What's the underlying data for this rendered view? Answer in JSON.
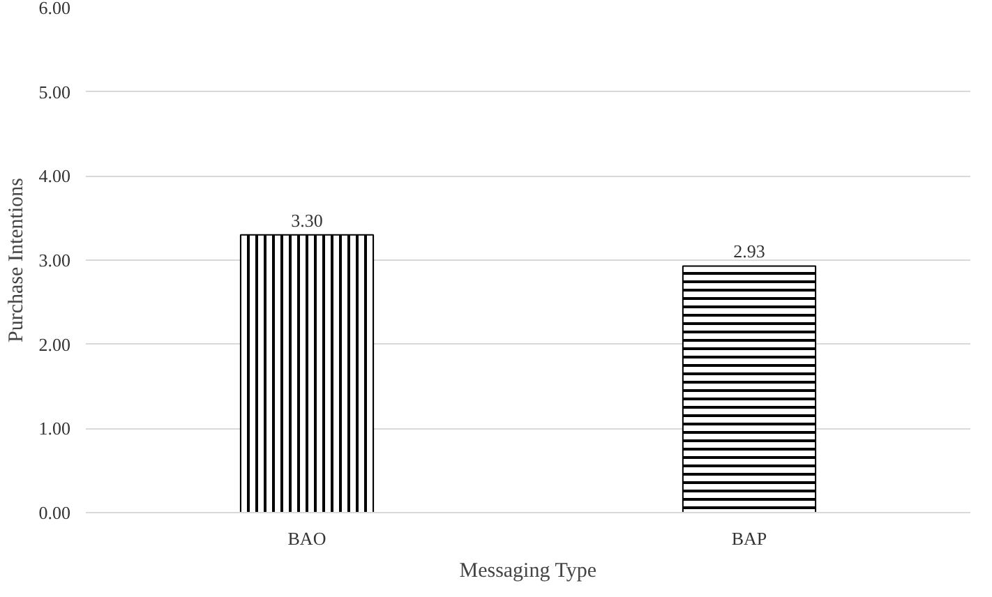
{
  "chart_data": {
    "type": "bar",
    "xlabel": "Messaging Type",
    "ylabel": "Purchase Intentions",
    "categories": [
      "BAO",
      "BAP"
    ],
    "values": [
      3.3,
      2.93
    ],
    "value_labels": [
      "3.30",
      "2.93"
    ],
    "colors": [
      "#000000",
      "#000000"
    ],
    "ylim": [
      0,
      6
    ],
    "yticks": [
      {
        "value": 0,
        "label": "0.00"
      },
      {
        "value": 1,
        "label": "1.00"
      },
      {
        "value": 2,
        "label": "2.00"
      },
      {
        "value": 3,
        "label": "3.00"
      },
      {
        "value": 4,
        "label": "4.00"
      },
      {
        "value": 5,
        "label": "5.00"
      },
      {
        "value": 6,
        "label": "6.00"
      }
    ],
    "grid": "y"
  }
}
